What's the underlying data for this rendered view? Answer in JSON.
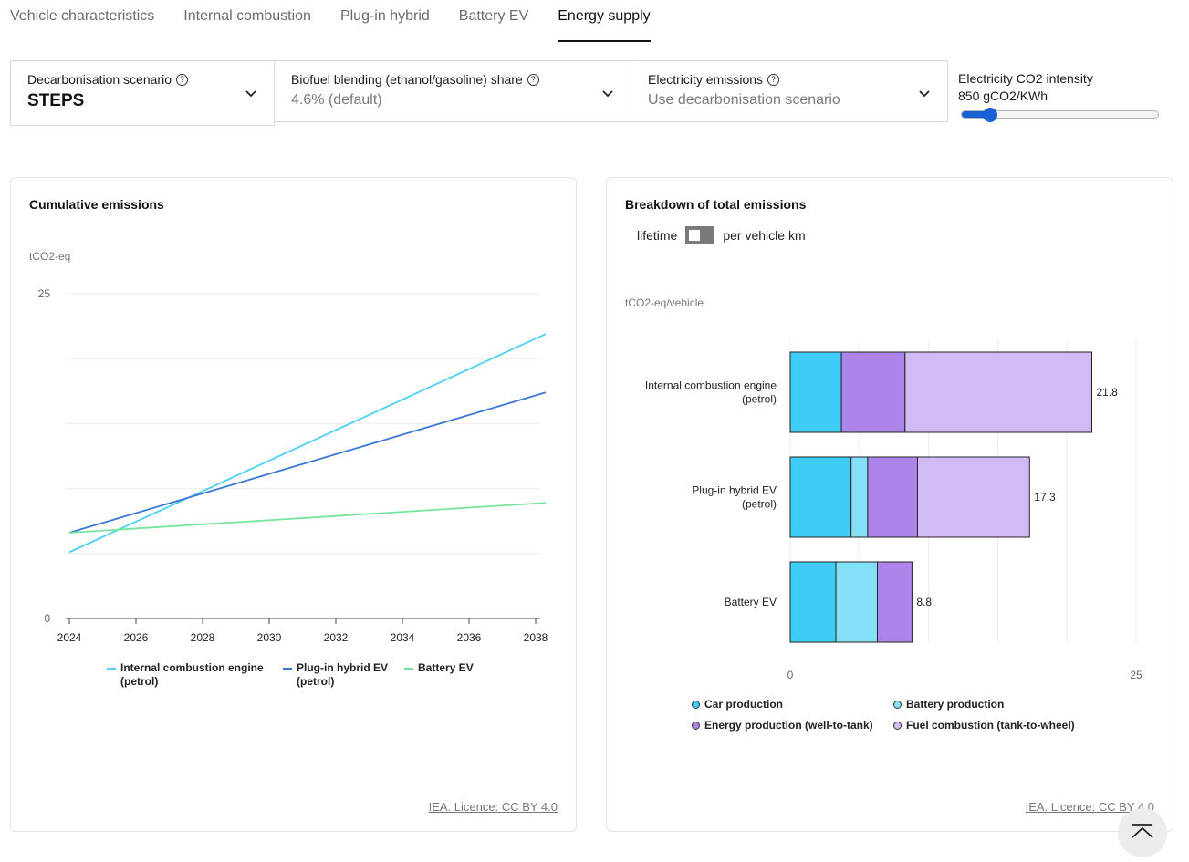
{
  "tabs": [
    "Vehicle characteristics",
    "Internal combustion",
    "Plug-in hybrid",
    "Battery EV",
    "Energy supply"
  ],
  "active_tab": "Energy supply",
  "controls": {
    "scenario": {
      "label": "Decarbonisation scenario",
      "value": "STEPS"
    },
    "biofuel": {
      "label": "Biofuel blending (ethanol/gasoline) share",
      "value": "4.6% (default)"
    },
    "electricity": {
      "label": "Electricity emissions",
      "value": "Use decarbonisation scenario"
    },
    "intensity": {
      "label": "Electricity CO2 intensity",
      "value": "850 gCO2/KWh",
      "slider_fraction": 0.13
    }
  },
  "info_glyph": "?",
  "icons": {
    "info": "info-circle-icon",
    "chevron": "chevron-down-icon",
    "scroll_top": "arrow-up-to-top-icon"
  },
  "colors": {
    "ice": "#4dd0f5",
    "phev": "#3a78d4",
    "bev": "#74e59a",
    "car_production": "#3fcdf7",
    "battery_production": "#84e0f7",
    "energy_production": "#ad85ea",
    "fuel_combustion": "#d2bbf5",
    "accent": "#1a5fd6"
  },
  "left_card": {
    "title": "Cumulative emissions",
    "unit": "tCO2-eq",
    "licence": "IEA. Licence: CC BY 4.0",
    "legend": [
      "Internal combustion engine (petrol)",
      "Plug-in hybrid EV (petrol)",
      "Battery EV"
    ]
  },
  "right_card": {
    "title": "Breakdown of total emissions",
    "toggle_left": "lifetime",
    "toggle_right": "per vehicle km",
    "unit": "tCO2-eq/vehicle",
    "licence": "IEA. Licence: CC BY 4.0",
    "legend": [
      "Car production",
      "Battery production",
      "Energy production (well-to-tank)",
      "Fuel combustion (tank-to-wheel)"
    ]
  },
  "chart_data": [
    {
      "type": "line",
      "title": "Cumulative emissions",
      "ylabel": "tCO2-eq",
      "ylim": [
        0,
        25
      ],
      "ytick_labels": [
        "0",
        "25"
      ],
      "xtick_labels": [
        "2024",
        "2026",
        "2028",
        "2030",
        "2032",
        "2034",
        "2036",
        "2038"
      ],
      "xlim": [
        2024,
        2038.3
      ],
      "grid": true,
      "legend_position": "bottom",
      "series": [
        {
          "name": "Internal combustion engine (petrol)",
          "x": [
            2024,
            2038.3
          ],
          "y": [
            5.1,
            21.9
          ]
        },
        {
          "name": "Plug-in hybrid EV (petrol)",
          "x": [
            2024,
            2038.3
          ],
          "y": [
            6.6,
            17.4
          ]
        },
        {
          "name": "Battery EV",
          "x": [
            2024,
            2038.3
          ],
          "y": [
            6.6,
            8.9
          ]
        }
      ]
    },
    {
      "type": "bar",
      "orientation": "horizontal",
      "stacked": true,
      "title": "Breakdown of total emissions",
      "xlabel": "tCO2-eq/vehicle",
      "xlim": [
        0,
        25
      ],
      "xtick_labels": [
        "0",
        "25"
      ],
      "grid": true,
      "legend_position": "bottom",
      "categories": [
        "Internal combustion engine (petrol)",
        "Plug-in hybrid EV (petrol)",
        "Battery EV"
      ],
      "category_lines": [
        [
          "Internal combustion engine",
          "(petrol)"
        ],
        [
          "Plug-in hybrid EV",
          "(petrol)"
        ],
        [
          "Battery EV"
        ]
      ],
      "series": [
        {
          "name": "Car production",
          "values": [
            3.7,
            4.4,
            3.3
          ]
        },
        {
          "name": "Battery production",
          "values": [
            0.0,
            1.2,
            3.0
          ]
        },
        {
          "name": "Energy production (well-to-tank)",
          "values": [
            4.6,
            3.6,
            2.5
          ]
        },
        {
          "name": "Fuel combustion (tank-to-wheel)",
          "values": [
            13.5,
            8.1,
            0.0
          ]
        }
      ],
      "totals": [
        21.8,
        17.3,
        8.8
      ],
      "total_labels": [
        "21.8",
        "17.3",
        "8.8"
      ]
    }
  ]
}
